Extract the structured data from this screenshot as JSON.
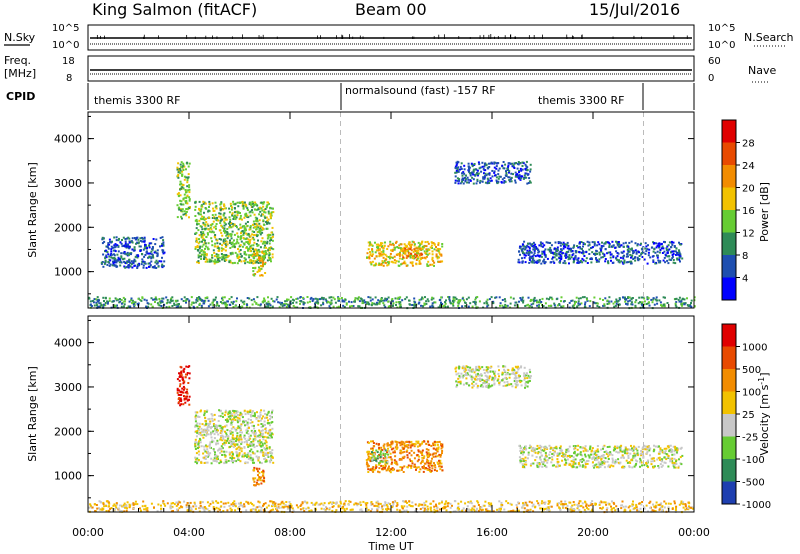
{
  "header": {
    "station": "King Salmon (fitACF)",
    "beam": "Beam 00",
    "date": "15/Jul/2016"
  },
  "strips": {
    "nsky_label": "N.Sky",
    "nsearch_label": "N.Search",
    "freq_label_1": "Freq.",
    "freq_label_2": "[MHz]",
    "nave_label": "Nave",
    "cpid_label": "CPID",
    "noise_left_ticks": [
      "10^5",
      "10^0"
    ],
    "noise_right_ticks": [
      "10^5",
      "10^0"
    ],
    "freq_ticks": [
      "18",
      "8"
    ],
    "nave_ticks": [
      "60",
      "0"
    ],
    "cpid_segments": [
      "themis 3300 RF",
      "normalsound (fast) -157 RF",
      "themis 3300 RF"
    ]
  },
  "chart_data": [
    {
      "type": "heatmap",
      "name": "power",
      "ylabel": "Slant Range [km]",
      "xlabel": "",
      "y_ticks": [
        "1000",
        "2000",
        "3000",
        "4000"
      ],
      "ylim": [
        180,
        4600
      ],
      "colorbar": {
        "label": "Power [dB]",
        "ticks": [
          "4",
          "8",
          "12",
          "16",
          "20",
          "24",
          "28"
        ],
        "colors": [
          "#0000ff",
          "#1e4fb0",
          "#2e8b57",
          "#66cc33",
          "#f2c200",
          "#f28c00",
          "#e84a00",
          "#e00000"
        ]
      },
      "regions": [
        {
          "t0": 3.5,
          "t1": 4.0,
          "r0": 2200,
          "r1": 3500,
          "level": 3
        },
        {
          "t0": 4.2,
          "t1": 7.3,
          "r0": 1200,
          "r1": 2600,
          "level": 3
        },
        {
          "t0": 6.5,
          "t1": 7.0,
          "r0": 900,
          "r1": 1500,
          "level": 4
        },
        {
          "t0": 11.0,
          "t1": 14.0,
          "r0": 1150,
          "r1": 1700,
          "level": 4
        },
        {
          "t0": 12.3,
          "t1": 13.2,
          "r0": 1300,
          "r1": 1550,
          "level": 5
        },
        {
          "t0": 14.5,
          "t1": 17.5,
          "r0": 3000,
          "r1": 3500,
          "level": 1
        },
        {
          "t0": 17.0,
          "t1": 23.5,
          "r0": 1200,
          "r1": 1700,
          "level": 1
        },
        {
          "t0": 0.5,
          "t1": 3.0,
          "r0": 1100,
          "r1": 1800,
          "level": 1
        },
        {
          "t0": 0.0,
          "t1": 24.0,
          "r0": 200,
          "r1": 450,
          "level": 2
        }
      ]
    },
    {
      "type": "heatmap",
      "name": "velocity",
      "ylabel": "Slant Range [km]",
      "xlabel": "Time UT",
      "y_ticks": [
        "1000",
        "2000",
        "3000",
        "4000"
      ],
      "x_ticks": [
        "00:00",
        "04:00",
        "08:00",
        "12:00",
        "16:00",
        "20:00",
        "00:00"
      ],
      "x_hours": [
        0,
        4,
        8,
        12,
        16,
        20,
        24
      ],
      "ylim": [
        180,
        4600
      ],
      "colorbar": {
        "label": "Velocity [m s^-1]",
        "ticks": [
          "1000",
          "500",
          "100",
          "25",
          "-25",
          "-100",
          "-500",
          "-1000"
        ],
        "colors": [
          "#1e3fb0",
          "#2e8b57",
          "#66cc33",
          "#c8c8c8",
          "#f2c200",
          "#f28c00",
          "#e84a00",
          "#e00000"
        ]
      },
      "regions": [
        {
          "t0": 3.5,
          "t1": 4.0,
          "r0": 2600,
          "r1": 3500,
          "level": 7
        },
        {
          "t0": 4.2,
          "t1": 7.3,
          "r0": 1300,
          "r1": 2500,
          "level": 3
        },
        {
          "t0": 6.5,
          "t1": 7.0,
          "r0": 800,
          "r1": 1200,
          "level": 5
        },
        {
          "t0": 11.0,
          "t1": 14.0,
          "r0": 1100,
          "r1": 1800,
          "level": 5
        },
        {
          "t0": 11.2,
          "t1": 11.9,
          "r0": 1300,
          "r1": 1600,
          "level": 2
        },
        {
          "t0": 14.5,
          "t1": 17.5,
          "r0": 3000,
          "r1": 3500,
          "level": 3
        },
        {
          "t0": 17.0,
          "t1": 23.5,
          "r0": 1200,
          "r1": 1700,
          "level": 3
        },
        {
          "t0": 0.0,
          "t1": 24.0,
          "r0": 200,
          "r1": 450,
          "level": 4
        }
      ]
    }
  ]
}
